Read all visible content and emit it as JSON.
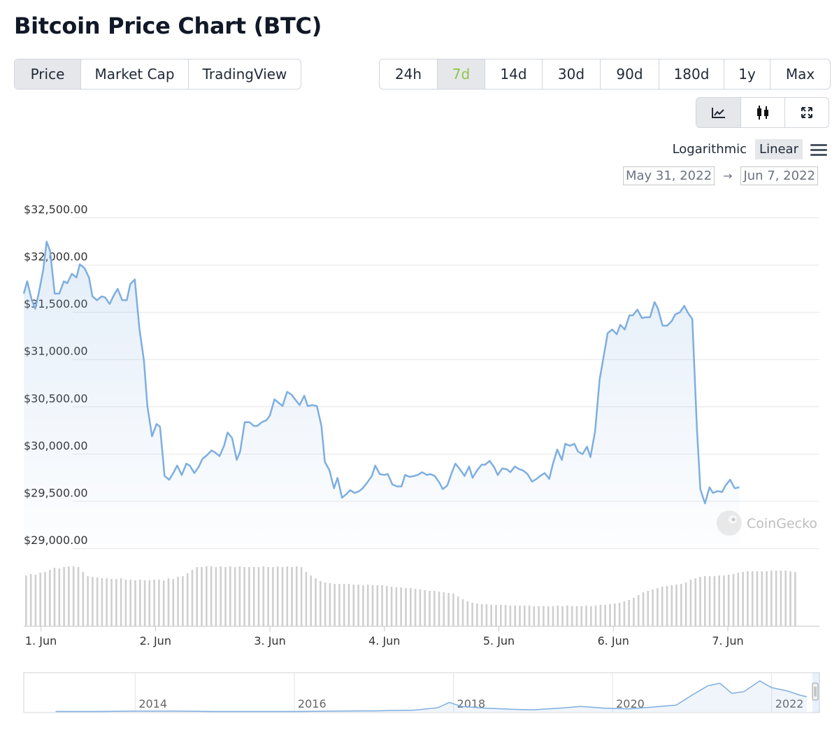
{
  "header": {
    "title": "Bitcoin Price Chart (BTC)"
  },
  "view_tabs": [
    {
      "label": "Price",
      "active": true
    },
    {
      "label": "Market Cap",
      "active": false
    },
    {
      "label": "TradingView",
      "active": false
    }
  ],
  "range_tabs": [
    {
      "label": "24h",
      "active": false
    },
    {
      "label": "7d",
      "active": true
    },
    {
      "label": "14d",
      "active": false
    },
    {
      "label": "30d",
      "active": false
    },
    {
      "label": "90d",
      "active": false
    },
    {
      "label": "180d",
      "active": false
    },
    {
      "label": "1y",
      "active": false
    },
    {
      "label": "Max",
      "active": false
    }
  ],
  "chart_type_icons": [
    {
      "icon": "line-chart-icon",
      "active": true
    },
    {
      "icon": "candlestick-icon",
      "active": false
    },
    {
      "icon": "expand-icon",
      "active": false
    }
  ],
  "scale": {
    "logarithmic": "Logarithmic",
    "linear": "Linear",
    "selected": "Linear"
  },
  "date_range": {
    "from": "May 31, 2022",
    "arrow": "→",
    "to": "Jun 7, 2022"
  },
  "colors": {
    "line": "#7eaee0",
    "accent": "#8dc647",
    "volume": "#cfcfcf",
    "grid": "#e6e6e6"
  },
  "watermark": "CoinGecko",
  "chart_data": {
    "type": "line",
    "title": "",
    "y_ticks": [
      "$32,500.00",
      "$32,000.00",
      "$31,500.00",
      "$31,000.00",
      "$30,500.00",
      "$30,000.00",
      "$29,500.00",
      "$29,000.00"
    ],
    "ylim": [
      29000,
      32500
    ],
    "x_ticks": [
      "1. Jun",
      "2. Jun",
      "3. Jun",
      "4. Jun",
      "5. Jun",
      "6. Jun",
      "7. Jun"
    ],
    "xlim": [
      -0.15,
      6.8
    ],
    "grid": true,
    "series": [
      {
        "values": [
          [
            -0.15,
            31650
          ],
          [
            -0.12,
            31780
          ],
          [
            -0.08,
            31580
          ],
          [
            -0.05,
            31490
          ],
          [
            -0.02,
            31650
          ],
          [
            0.02,
            31900
          ],
          [
            0.05,
            32200
          ],
          [
            0.08,
            32100
          ],
          [
            0.12,
            31650
          ],
          [
            0.16,
            31650
          ],
          [
            0.2,
            31780
          ],
          [
            0.23,
            31760
          ],
          [
            0.27,
            31860
          ],
          [
            0.31,
            31820
          ],
          [
            0.34,
            31960
          ],
          [
            0.38,
            31920
          ],
          [
            0.42,
            31820
          ],
          [
            0.45,
            31620
          ],
          [
            0.49,
            31580
          ],
          [
            0.53,
            31620
          ],
          [
            0.56,
            31610
          ],
          [
            0.6,
            31540
          ],
          [
            0.64,
            31640
          ],
          [
            0.67,
            31700
          ],
          [
            0.71,
            31580
          ],
          [
            0.75,
            31580
          ],
          [
            0.78,
            31750
          ],
          [
            0.82,
            31800
          ],
          [
            0.86,
            31280
          ],
          [
            0.9,
            30940
          ],
          [
            0.93,
            30460
          ],
          [
            0.97,
            30140
          ],
          [
            1.01,
            30270
          ],
          [
            1.04,
            30240
          ],
          [
            1.08,
            29720
          ],
          [
            1.12,
            29680
          ],
          [
            1.16,
            29760
          ],
          [
            1.19,
            29830
          ],
          [
            1.23,
            29730
          ],
          [
            1.27,
            29850
          ],
          [
            1.3,
            29830
          ],
          [
            1.34,
            29750
          ],
          [
            1.38,
            29820
          ],
          [
            1.41,
            29900
          ],
          [
            1.45,
            29940
          ],
          [
            1.49,
            29990
          ],
          [
            1.52,
            29970
          ],
          [
            1.56,
            29930
          ],
          [
            1.6,
            30040
          ],
          [
            1.63,
            30180
          ],
          [
            1.67,
            30120
          ],
          [
            1.71,
            29890
          ],
          [
            1.74,
            29980
          ],
          [
            1.78,
            30290
          ],
          [
            1.82,
            30290
          ],
          [
            1.86,
            30250
          ],
          [
            1.89,
            30250
          ],
          [
            1.93,
            30290
          ],
          [
            1.97,
            30310
          ],
          [
            2.0,
            30360
          ],
          [
            2.04,
            30530
          ],
          [
            2.08,
            30490
          ],
          [
            2.11,
            30460
          ],
          [
            2.15,
            30610
          ],
          [
            2.19,
            30580
          ],
          [
            2.22,
            30530
          ],
          [
            2.26,
            30470
          ],
          [
            2.3,
            30570
          ],
          [
            2.33,
            30460
          ],
          [
            2.37,
            30470
          ],
          [
            2.41,
            30460
          ],
          [
            2.45,
            30250
          ],
          [
            2.48,
            29870
          ],
          [
            2.52,
            29780
          ],
          [
            2.56,
            29590
          ],
          [
            2.59,
            29700
          ],
          [
            2.63,
            29490
          ],
          [
            2.67,
            29530
          ],
          [
            2.7,
            29570
          ],
          [
            2.74,
            29540
          ],
          [
            2.78,
            29560
          ],
          [
            2.81,
            29590
          ],
          [
            2.85,
            29650
          ],
          [
            2.89,
            29720
          ],
          [
            2.92,
            29830
          ],
          [
            2.96,
            29740
          ],
          [
            3.0,
            29730
          ],
          [
            3.03,
            29740
          ],
          [
            3.07,
            29630
          ],
          [
            3.11,
            29610
          ],
          [
            3.15,
            29610
          ],
          [
            3.18,
            29730
          ],
          [
            3.22,
            29710
          ],
          [
            3.26,
            29720
          ],
          [
            3.29,
            29730
          ],
          [
            3.33,
            29760
          ],
          [
            3.37,
            29730
          ],
          [
            3.4,
            29740
          ],
          [
            3.44,
            29720
          ],
          [
            3.48,
            29650
          ],
          [
            3.51,
            29580
          ],
          [
            3.55,
            29620
          ],
          [
            3.59,
            29760
          ],
          [
            3.62,
            29850
          ],
          [
            3.66,
            29790
          ],
          [
            3.7,
            29720
          ],
          [
            3.74,
            29820
          ],
          [
            3.77,
            29700
          ],
          [
            3.81,
            29780
          ],
          [
            3.85,
            29840
          ],
          [
            3.88,
            29840
          ],
          [
            3.92,
            29880
          ],
          [
            3.96,
            29810
          ],
          [
            3.99,
            29730
          ],
          [
            4.03,
            29800
          ],
          [
            4.07,
            29790
          ],
          [
            4.1,
            29760
          ],
          [
            4.14,
            29820
          ],
          [
            4.18,
            29790
          ],
          [
            4.21,
            29780
          ],
          [
            4.25,
            29740
          ],
          [
            4.29,
            29660
          ],
          [
            4.33,
            29690
          ],
          [
            4.36,
            29720
          ],
          [
            4.4,
            29750
          ],
          [
            4.44,
            29690
          ],
          [
            4.47,
            29840
          ],
          [
            4.51,
            30000
          ],
          [
            4.55,
            29890
          ],
          [
            4.58,
            30060
          ],
          [
            4.62,
            30040
          ],
          [
            4.66,
            30060
          ],
          [
            4.69,
            29980
          ],
          [
            4.73,
            29950
          ],
          [
            4.77,
            30030
          ],
          [
            4.8,
            29920
          ],
          [
            4.84,
            30190
          ],
          [
            4.88,
            30740
          ],
          [
            4.92,
            31020
          ],
          [
            4.95,
            31230
          ],
          [
            4.99,
            31270
          ],
          [
            5.03,
            31220
          ],
          [
            5.06,
            31320
          ],
          [
            5.1,
            31270
          ],
          [
            5.14,
            31420
          ],
          [
            5.17,
            31420
          ],
          [
            5.21,
            31480
          ],
          [
            5.25,
            31390
          ],
          [
            5.28,
            31400
          ],
          [
            5.32,
            31400
          ],
          [
            5.36,
            31560
          ],
          [
            5.39,
            31490
          ],
          [
            5.43,
            31310
          ],
          [
            5.47,
            31310
          ],
          [
            5.51,
            31360
          ],
          [
            5.54,
            31430
          ],
          [
            5.58,
            31450
          ],
          [
            5.62,
            31520
          ],
          [
            5.65,
            31450
          ],
          [
            5.69,
            31380
          ],
          [
            5.73,
            30220
          ],
          [
            5.76,
            29580
          ],
          [
            5.8,
            29430
          ],
          [
            5.84,
            29600
          ],
          [
            5.87,
            29540
          ],
          [
            5.91,
            29560
          ],
          [
            5.95,
            29550
          ],
          [
            5.98,
            29620
          ],
          [
            6.02,
            29680
          ],
          [
            6.06,
            29590
          ],
          [
            6.1,
            29600
          ]
        ]
      }
    ],
    "volume_values": [
      0.72,
      0.74,
      0.73,
      0.76,
      0.77,
      0.8,
      0.83,
      0.82,
      0.84,
      0.85,
      0.85,
      0.84,
      0.77,
      0.71,
      0.7,
      0.69,
      0.68,
      0.68,
      0.67,
      0.67,
      0.68,
      0.66,
      0.66,
      0.65,
      0.66,
      0.65,
      0.65,
      0.66,
      0.66,
      0.65,
      0.68,
      0.67,
      0.7,
      0.71,
      0.75,
      0.8,
      0.84,
      0.84,
      0.85,
      0.85,
      0.84,
      0.85,
      0.84,
      0.85,
      0.84,
      0.85,
      0.84,
      0.84,
      0.84,
      0.84,
      0.85,
      0.84,
      0.84,
      0.85,
      0.84,
      0.85,
      0.84,
      0.85,
      0.84,
      0.77,
      0.72,
      0.68,
      0.64,
      0.62,
      0.61,
      0.6,
      0.6,
      0.6,
      0.6,
      0.59,
      0.59,
      0.58,
      0.59,
      0.58,
      0.58,
      0.58,
      0.57,
      0.56,
      0.55,
      0.55,
      0.54,
      0.54,
      0.53,
      0.52,
      0.51,
      0.5,
      0.5,
      0.49,
      0.48,
      0.47,
      0.46,
      0.42,
      0.38,
      0.35,
      0.33,
      0.32,
      0.31,
      0.31,
      0.3,
      0.3,
      0.3,
      0.3,
      0.29,
      0.29,
      0.29,
      0.29,
      0.29,
      0.28,
      0.28,
      0.28,
      0.28,
      0.28,
      0.29,
      0.28,
      0.29,
      0.28,
      0.28,
      0.28,
      0.29,
      0.28,
      0.29,
      0.3,
      0.3,
      0.31,
      0.32,
      0.33,
      0.35,
      0.37,
      0.4,
      0.44,
      0.48,
      0.5,
      0.52,
      0.54,
      0.56,
      0.57,
      0.58,
      0.59,
      0.6,
      0.62,
      0.66,
      0.68,
      0.7,
      0.71,
      0.71,
      0.71,
      0.72,
      0.72,
      0.73,
      0.74,
      0.76,
      0.77,
      0.78,
      0.78,
      0.78,
      0.78,
      0.78,
      0.79,
      0.79,
      0.79,
      0.79,
      0.78,
      0.77
    ],
    "navigator": {
      "x_ticks": [
        "2014",
        "2016",
        "2018",
        "2020",
        "2022"
      ],
      "values": [
        [
          2013.0,
          0.01
        ],
        [
          2013.5,
          0.01
        ],
        [
          2014.0,
          0.02
        ],
        [
          2014.5,
          0.02
        ],
        [
          2015.0,
          0.01
        ],
        [
          2015.5,
          0.01
        ],
        [
          2016.0,
          0.01
        ],
        [
          2016.5,
          0.02
        ],
        [
          2017.0,
          0.03
        ],
        [
          2017.5,
          0.05
        ],
        [
          2017.8,
          0.12
        ],
        [
          2017.95,
          0.28
        ],
        [
          2018.1,
          0.16
        ],
        [
          2018.4,
          0.11
        ],
        [
          2018.8,
          0.07
        ],
        [
          2019.0,
          0.06
        ],
        [
          2019.4,
          0.12
        ],
        [
          2019.6,
          0.16
        ],
        [
          2019.9,
          0.11
        ],
        [
          2020.2,
          0.09
        ],
        [
          2020.5,
          0.14
        ],
        [
          2020.8,
          0.2
        ],
        [
          2021.0,
          0.5
        ],
        [
          2021.2,
          0.78
        ],
        [
          2021.35,
          0.85
        ],
        [
          2021.5,
          0.55
        ],
        [
          2021.65,
          0.6
        ],
        [
          2021.85,
          0.92
        ],
        [
          2022.0,
          0.72
        ],
        [
          2022.2,
          0.62
        ],
        [
          2022.35,
          0.5
        ],
        [
          2022.44,
          0.45
        ]
      ]
    }
  }
}
